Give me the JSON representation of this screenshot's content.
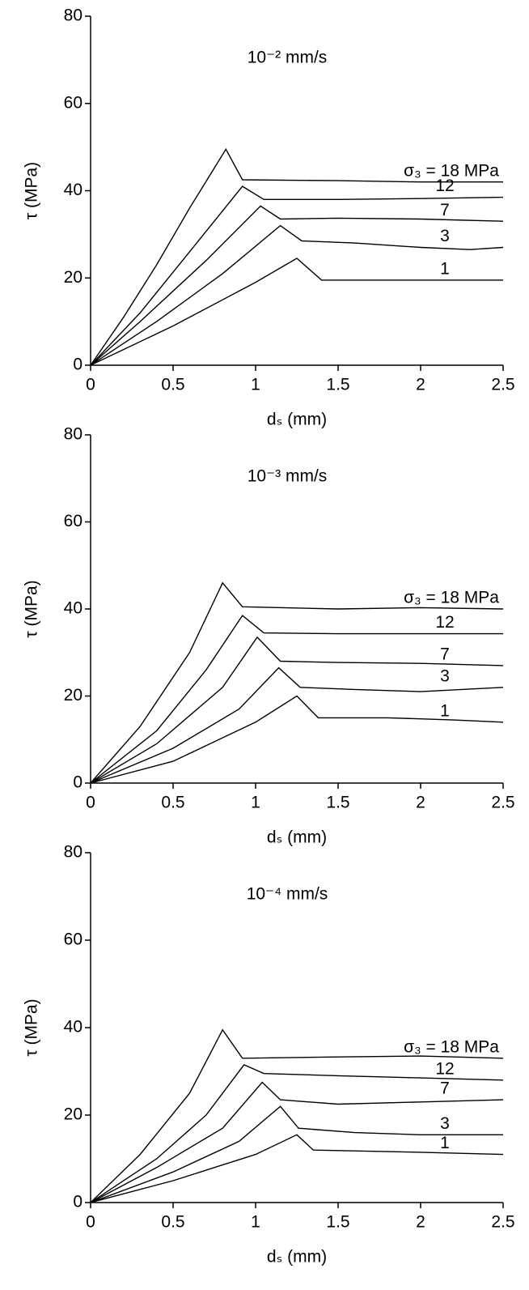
{
  "chart_data": [
    {
      "type": "line",
      "title": "10⁻² mm/s",
      "xlabel": "dₛ (mm)",
      "ylabel": "τ (MPa)",
      "xlim": [
        0,
        2.5
      ],
      "ylim": [
        0,
        80
      ],
      "xticks": [
        0,
        0.5,
        1,
        1.5,
        2,
        2.5
      ],
      "yticks": [
        0,
        20,
        40,
        60,
        80
      ],
      "series": [
        {
          "name": "σ₃ = 18 MPa",
          "color": "#000000",
          "x": [
            0,
            0.2,
            0.4,
            0.6,
            0.82,
            0.92,
            1.5,
            2,
            2.5
          ],
          "values": [
            0,
            11,
            23,
            36,
            49.5,
            42.5,
            42.3,
            42,
            42
          ]
        },
        {
          "name": "12",
          "color": "#000000",
          "x": [
            0,
            0.3,
            0.6,
            0.92,
            1.05,
            1.5,
            2,
            2.5
          ],
          "values": [
            0,
            12,
            26,
            41,
            38,
            38,
            38.2,
            38.5
          ]
        },
        {
          "name": "7",
          "color": "#000000",
          "x": [
            0,
            0.3,
            0.7,
            1.03,
            1.15,
            1.5,
            2,
            2.5
          ],
          "values": [
            0,
            10,
            24,
            36.5,
            33.5,
            33.7,
            33.5,
            33
          ]
        },
        {
          "name": "3",
          "color": "#000000",
          "x": [
            0,
            0.4,
            0.8,
            1.15,
            1.28,
            1.6,
            2,
            2.3,
            2.5
          ],
          "values": [
            0,
            10,
            21,
            32,
            28.5,
            28,
            27,
            26.5,
            27
          ]
        },
        {
          "name": "1",
          "color": "#000000",
          "x": [
            0,
            0.5,
            1,
            1.25,
            1.4,
            2,
            2.5
          ],
          "values": [
            0,
            9,
            19,
            24.5,
            19.5,
            19.5,
            19.5
          ]
        }
      ]
    },
    {
      "type": "line",
      "title": "10⁻³ mm/s",
      "xlabel": "dₛ (mm)",
      "ylabel": "τ (MPa)",
      "xlim": [
        0,
        2.5
      ],
      "ylim": [
        0,
        80
      ],
      "xticks": [
        0,
        0.5,
        1,
        1.5,
        2,
        2.5
      ],
      "yticks": [
        0,
        20,
        40,
        60,
        80
      ],
      "series": [
        {
          "name": "σ₃ = 18 MPa",
          "color": "#000000",
          "x": [
            0,
            0.3,
            0.6,
            0.8,
            0.92,
            1.5,
            2,
            2.5
          ],
          "values": [
            0,
            13,
            30,
            46,
            40.5,
            40,
            40.3,
            40
          ]
        },
        {
          "name": "12",
          "color": "#000000",
          "x": [
            0,
            0.4,
            0.7,
            0.92,
            1.05,
            1.5,
            2.5
          ],
          "values": [
            0,
            12,
            26,
            38.5,
            34.5,
            34.3,
            34.3
          ]
        },
        {
          "name": "7",
          "color": "#000000",
          "x": [
            0,
            0.4,
            0.8,
            1.01,
            1.15,
            1.5,
            2,
            2.5
          ],
          "values": [
            0,
            9,
            22,
            33.5,
            28,
            27.7,
            27.5,
            27
          ]
        },
        {
          "name": "3",
          "color": "#000000",
          "x": [
            0,
            0.5,
            0.9,
            1.14,
            1.27,
            1.6,
            2,
            2.5
          ],
          "values": [
            0,
            8,
            17,
            26.5,
            22,
            21.5,
            21,
            22
          ]
        },
        {
          "name": "1",
          "color": "#000000",
          "x": [
            0,
            0.5,
            1,
            1.25,
            1.38,
            1.8,
            2.2,
            2.5
          ],
          "values": [
            0,
            5,
            14,
            20,
            15,
            15,
            14.5,
            14
          ]
        }
      ]
    },
    {
      "type": "line",
      "title": "10⁻⁴ mm/s",
      "xlabel": "dₛ (mm)",
      "ylabel": "τ (MPa)",
      "xlim": [
        0,
        2.5
      ],
      "ylim": [
        0,
        80
      ],
      "xticks": [
        0,
        0.5,
        1,
        1.5,
        2,
        2.5
      ],
      "yticks": [
        0,
        20,
        40,
        60,
        80
      ],
      "series": [
        {
          "name": "σ₃ = 18 MPa",
          "color": "#000000",
          "x": [
            0,
            0.3,
            0.6,
            0.8,
            0.92,
            1.5,
            2,
            2.5
          ],
          "values": [
            0,
            11,
            25,
            39.5,
            33,
            33.3,
            33.5,
            33
          ]
        },
        {
          "name": "12",
          "color": "#000000",
          "x": [
            0,
            0.4,
            0.7,
            0.93,
            1.05,
            1.5,
            2,
            2.5
          ],
          "values": [
            0,
            10,
            20,
            31.5,
            29.5,
            29,
            28.5,
            28
          ]
        },
        {
          "name": "7",
          "color": "#000000",
          "x": [
            0,
            0.4,
            0.8,
            1.04,
            1.15,
            1.5,
            2,
            2.5
          ],
          "values": [
            0,
            8,
            17,
            27.5,
            23.5,
            22.5,
            23,
            23.5
          ]
        },
        {
          "name": "3",
          "color": "#000000",
          "x": [
            0,
            0.5,
            0.9,
            1.15,
            1.26,
            1.6,
            2,
            2.4,
            2.5
          ],
          "values": [
            0,
            7,
            14,
            22,
            17,
            16,
            15.5,
            15.5,
            15.5
          ]
        },
        {
          "name": "1",
          "color": "#000000",
          "x": [
            0,
            0.5,
            1,
            1.25,
            1.35,
            2,
            2.5
          ],
          "values": [
            0,
            5,
            11,
            15.5,
            12,
            11.5,
            11
          ]
        }
      ]
    }
  ]
}
